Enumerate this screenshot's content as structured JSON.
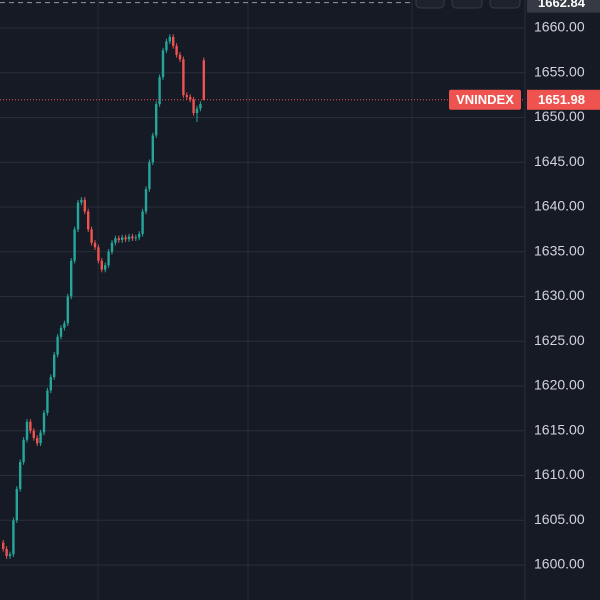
{
  "chart_data": {
    "type": "candlestick",
    "symbol": "VNINDEX",
    "categories": [
      null,
      null,
      null,
      null,
      null,
      null,
      null,
      null,
      null,
      null,
      null,
      null,
      null,
      null,
      null,
      null,
      null,
      null,
      null,
      null,
      null,
      null,
      null,
      null,
      null,
      null,
      null,
      null,
      null,
      null,
      null,
      null,
      null,
      null,
      null,
      null,
      null,
      null,
      null,
      null,
      null,
      null,
      null,
      null,
      null,
      null,
      null,
      null,
      null,
      null,
      null,
      null,
      null,
      null,
      null,
      null,
      null,
      null,
      null,
      null
    ],
    "open": [
      1602.5,
      1601.8,
      1601.0,
      1601.2,
      1605.0,
      1608.5,
      1611.5,
      1614.0,
      1616.0,
      1615.0,
      1614.2,
      1613.6,
      1614.8,
      1617.0,
      1619.5,
      1621.0,
      1623.5,
      1625.5,
      1626.5,
      1627.0,
      1630.0,
      1634.0,
      1637.5,
      1640.5,
      1640.8,
      1639.5,
      1637.5,
      1636.0,
      1635.5,
      1634.0,
      1633.0,
      1633.5,
      1635.0,
      1636.0,
      1636.5,
      1636.3,
      1636.6,
      1636.4,
      1636.7,
      1636.5,
      1636.6,
      1637.0,
      1639.5,
      1642.0,
      1645.0,
      1648.0,
      1651.5,
      1654.5,
      1657.5,
      1658.5,
      1659.0,
      1658.0,
      1657.0,
      1656.5,
      1652.5,
      1652.3,
      1652.0,
      1650.5,
      1651.0,
      1656.4
    ],
    "high": [
      1602.8,
      1602.1,
      1601.5,
      1605.3,
      1608.8,
      1611.8,
      1614.3,
      1616.3,
      1616.3,
      1615.3,
      1614.5,
      1615.1,
      1617.3,
      1619.8,
      1621.3,
      1623.8,
      1625.8,
      1626.8,
      1627.3,
      1630.3,
      1634.3,
      1637.8,
      1640.8,
      1641.1,
      1641.1,
      1639.8,
      1637.8,
      1636.3,
      1635.8,
      1634.3,
      1633.8,
      1635.3,
      1636.3,
      1636.8,
      1636.8,
      1636.9,
      1636.9,
      1637.0,
      1637.0,
      1636.9,
      1637.3,
      1639.8,
      1642.3,
      1645.3,
      1648.3,
      1651.8,
      1654.8,
      1657.8,
      1658.8,
      1659.3,
      1659.3,
      1658.3,
      1657.3,
      1656.8,
      1652.8,
      1652.6,
      1652.3,
      1651.3,
      1651.8,
      1656.7
    ],
    "low": [
      1601.5,
      1600.7,
      1600.7,
      1600.9,
      1604.7,
      1608.2,
      1611.2,
      1613.7,
      1614.7,
      1613.9,
      1613.3,
      1613.3,
      1614.5,
      1616.7,
      1619.2,
      1620.7,
      1623.2,
      1625.2,
      1626.2,
      1626.7,
      1629.7,
      1633.7,
      1637.2,
      1640.2,
      1639.2,
      1637.2,
      1635.7,
      1635.2,
      1633.7,
      1632.7,
      1632.7,
      1633.2,
      1634.7,
      1635.7,
      1636.0,
      1636.0,
      1636.1,
      1636.1,
      1636.2,
      1636.2,
      1636.3,
      1636.7,
      1639.2,
      1641.7,
      1644.7,
      1647.7,
      1651.2,
      1654.2,
      1657.2,
      1658.2,
      1657.7,
      1656.7,
      1656.2,
      1652.2,
      1652.0,
      1651.7,
      1650.2,
      1649.5,
      1650.7,
      1651.9
    ],
    "close": [
      1601.8,
      1601.0,
      1601.2,
      1605.0,
      1608.5,
      1611.5,
      1614.0,
      1616.0,
      1615.0,
      1614.2,
      1613.6,
      1614.8,
      1617.0,
      1619.5,
      1621.0,
      1623.5,
      1625.5,
      1626.5,
      1627.0,
      1630.0,
      1634.0,
      1637.5,
      1640.5,
      1640.8,
      1639.5,
      1637.5,
      1636.0,
      1635.5,
      1634.0,
      1633.0,
      1633.5,
      1635.0,
      1636.0,
      1636.5,
      1636.3,
      1636.6,
      1636.4,
      1636.7,
      1636.5,
      1636.6,
      1637.0,
      1639.5,
      1642.0,
      1645.0,
      1648.0,
      1651.5,
      1654.5,
      1657.5,
      1658.5,
      1659.0,
      1658.0,
      1657.0,
      1656.5,
      1652.5,
      1652.3,
      1652.0,
      1650.5,
      1651.0,
      1651.5,
      1651.98
    ],
    "up_color": "#26a69a",
    "down_color": "#ef5350",
    "last_price": 1651.98,
    "crosshair_price": 1662.84,
    "ylim": [
      1596.09,
      1663.13
    ],
    "yticks": [
      {
        "value": 1600,
        "label": "1600.00"
      },
      {
        "value": 1605,
        "label": "1605.00"
      },
      {
        "value": 1610,
        "label": "1610.00"
      },
      {
        "value": 1615,
        "label": "1615.00"
      },
      {
        "value": 1620,
        "label": "1620.00"
      },
      {
        "value": 1625,
        "label": "1625.00"
      },
      {
        "value": 1630,
        "label": "1630.00"
      },
      {
        "value": 1635,
        "label": "1635.00"
      },
      {
        "value": 1640,
        "label": "1640.00"
      },
      {
        "value": 1645,
        "label": "1645.00"
      },
      {
        "value": 1650,
        "label": "1650.00"
      },
      {
        "value": 1655,
        "label": "1655.00"
      },
      {
        "value": 1660,
        "label": "1660.00"
      }
    ],
    "grid": true
  }
}
